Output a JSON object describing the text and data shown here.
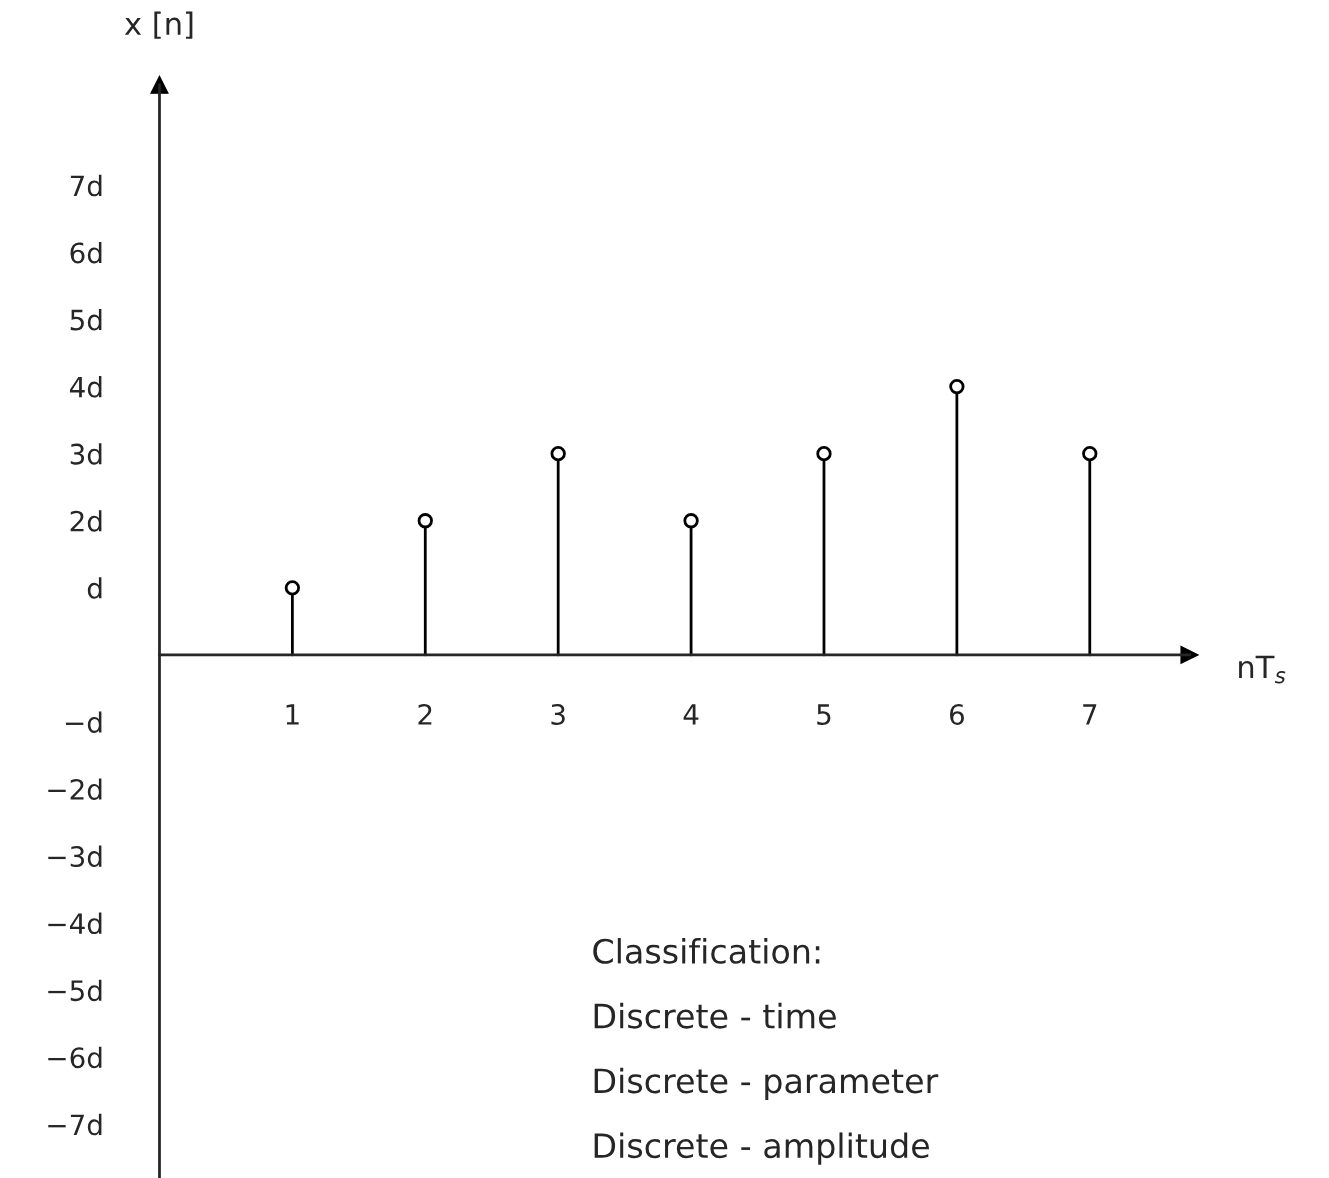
{
  "chart_data": {
    "type": "lollipop",
    "xlabel": "nT$_{s}$",
    "ylabel": "x [n]",
    "x": [
      1,
      2,
      3,
      4,
      5,
      6,
      7
    ],
    "values": [
      1,
      2,
      3,
      2,
      3,
      4,
      3
    ],
    "color": "#000000",
    "marker": "circle",
    "xlim": [
      0,
      7.75
    ],
    "xticks": [
      1,
      2,
      3,
      4,
      5,
      6,
      7
    ],
    "ylim": [
      -7.8,
      8.5
    ],
    "yticks": [
      {
        "value": -7,
        "label": "−7d"
      },
      {
        "value": -6,
        "label": "−6d"
      },
      {
        "value": -5,
        "label": "−5d"
      },
      {
        "value": -4,
        "label": "−4d"
      },
      {
        "value": -3,
        "label": "−3d"
      },
      {
        "value": -2,
        "label": "−2d"
      },
      {
        "value": -1,
        "label": "−d"
      },
      {
        "value": 1,
        "label": "d"
      },
      {
        "value": 2,
        "label": "2d"
      },
      {
        "value": 3,
        "label": "3d"
      },
      {
        "value": 4,
        "label": "4d"
      },
      {
        "value": 5,
        "label": "5d"
      },
      {
        "value": 6,
        "label": "6d"
      },
      {
        "value": 7,
        "label": "7d"
      }
    ],
    "grid": false,
    "annotations": [
      "Classification:",
      "Discrete - time",
      "Discrete - parameter",
      "Discrete - amplitude"
    ]
  }
}
